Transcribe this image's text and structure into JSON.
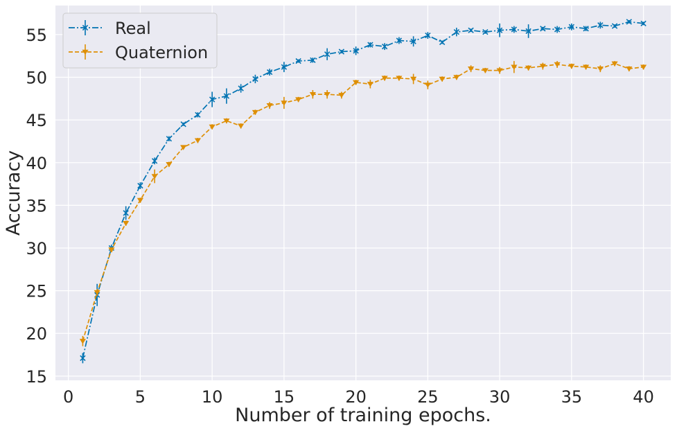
{
  "chart_data": {
    "type": "line",
    "xlabel": "Number of training epochs.",
    "ylabel": "Accuracy",
    "xlim": [
      -0.9,
      41.9
    ],
    "ylim": [
      14.5,
      58.4
    ],
    "xticks": [
      0,
      5,
      10,
      15,
      20,
      25,
      30,
      35,
      40
    ],
    "yticks": [
      15,
      20,
      25,
      30,
      35,
      40,
      45,
      50,
      55
    ],
    "grid": true,
    "background": "#eaeaf2",
    "legend_position": "top-left",
    "x": [
      1,
      2,
      3,
      4,
      5,
      6,
      7,
      8,
      9,
      10,
      11,
      12,
      13,
      14,
      15,
      16,
      17,
      18,
      19,
      20,
      21,
      22,
      23,
      24,
      25,
      26,
      27,
      28,
      29,
      30,
      31,
      32,
      33,
      34,
      35,
      36,
      37,
      38,
      39,
      40
    ],
    "series": [
      {
        "name": "Real",
        "color": "#0173b2",
        "linestyle": "dashdot",
        "marker": "x",
        "values": [
          17.1,
          24.5,
          30.0,
          34.1,
          37.3,
          40.2,
          42.8,
          44.5,
          45.6,
          47.4,
          47.8,
          48.7,
          49.8,
          50.6,
          51.2,
          51.9,
          52.0,
          52.7,
          53.0,
          53.1,
          53.8,
          53.6,
          54.3,
          54.2,
          54.9,
          54.1,
          55.3,
          55.5,
          55.3,
          55.5,
          55.6,
          55.4,
          55.7,
          55.6,
          55.9,
          55.7,
          56.1,
          56.0,
          56.5,
          56.3
        ],
        "errors": [
          0.6,
          1.3,
          0.4,
          0.8,
          0.4,
          0.4,
          0.3,
          0.2,
          0.3,
          0.9,
          0.9,
          0.5,
          0.5,
          0.4,
          0.6,
          0.2,
          0.3,
          0.7,
          0.2,
          0.5,
          0.3,
          0.4,
          0.4,
          0.6,
          0.4,
          0.2,
          0.5,
          0.2,
          0.2,
          0.8,
          0.4,
          0.8,
          0.2,
          0.4,
          0.4,
          0.3,
          0.4,
          0.2,
          0.2,
          0.2
        ]
      },
      {
        "name": "Quaternion",
        "color": "#de8f05",
        "linestyle": "dashed",
        "marker": "v",
        "values": [
          19.1,
          24.8,
          29.8,
          32.9,
          35.6,
          38.4,
          39.8,
          41.8,
          42.6,
          44.2,
          44.9,
          44.3,
          45.9,
          46.7,
          47.0,
          47.4,
          48.0,
          48.0,
          47.9,
          49.4,
          49.2,
          49.9,
          49.9,
          49.8,
          49.1,
          49.8,
          50.0,
          51.0,
          50.8,
          50.8,
          51.2,
          51.1,
          51.3,
          51.5,
          51.3,
          51.2,
          51.0,
          51.6,
          51.0,
          51.2
        ],
        "errors": [
          0.6,
          0.4,
          0.3,
          0.3,
          0.3,
          0.8,
          0.3,
          0.2,
          0.3,
          0.3,
          0.3,
          0.3,
          0.3,
          0.4,
          0.7,
          0.3,
          0.5,
          0.5,
          0.4,
          0.3,
          0.5,
          0.3,
          0.3,
          0.6,
          0.5,
          0.3,
          0.3,
          0.4,
          0.3,
          0.4,
          0.7,
          0.3,
          0.4,
          0.4,
          0.3,
          0.3,
          0.4,
          0.3,
          0.3,
          0.3
        ]
      }
    ]
  }
}
